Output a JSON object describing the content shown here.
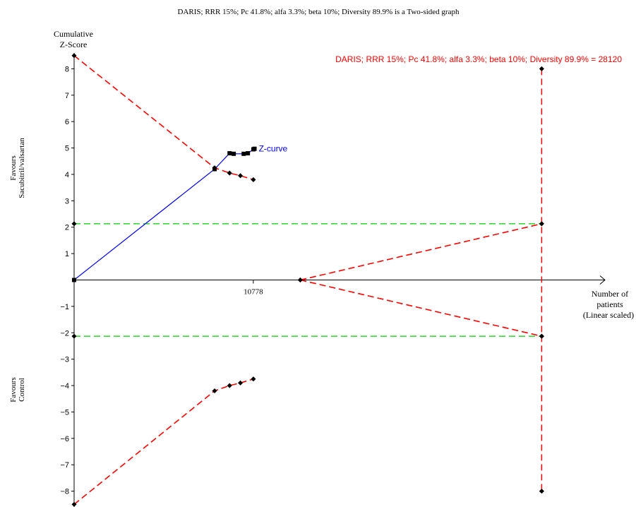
{
  "page_title": "DARIS; RRR 15%; Pc 41.8%; alfa 3.3%; beta 10%; Diversity 89.9% is a Two-sided graph",
  "chart_data": {
    "type": "line",
    "title": "DARIS; RRR 15%; Pc 41.8%; alfa 3.3%; beta 10%; Diversity 89.9% is a Two-sided graph",
    "ylabel_line1": "Cumulative",
    "ylabel_line2": "Z-Score",
    "xlabel_line1": "Number of",
    "xlabel_line2": "patients",
    "xlabel_line3": "(Linear scaled)",
    "favours_upper_line1": "Favours",
    "favours_upper_line2": "Sacubitril/valsartan",
    "favours_lower_line1": "Favours",
    "favours_lower_line2": "Control",
    "ris_label": "DARIS; RRR 15%; Pc 41.8%; alfa 3.3%; beta 10%; Diversity 89.9% = 28120",
    "ris_value": 28120,
    "xtick_label": "10778",
    "xtick_value": 10778,
    "ylim": [
      -8.6,
      8.6
    ],
    "xlim": [
      0,
      31500
    ],
    "yticks": [
      -8,
      -7,
      -6,
      -5,
      -4,
      -3,
      -2,
      -1,
      1,
      2,
      3,
      4,
      5,
      6,
      7,
      8
    ],
    "conventional_boundary": 2.13,
    "colors": {
      "zcurve": "#0000ff",
      "boundary": "#ff0000",
      "conventional": "#00cc00",
      "axis": "#000000",
      "ris_label": "#ff0000",
      "zcurve_label": "#0000ff"
    },
    "series": [
      {
        "name": "Z-curve",
        "points": [
          [
            0,
            0
          ],
          [
            8450,
            4.2
          ],
          [
            9350,
            4.8
          ],
          [
            9600,
            4.78
          ],
          [
            10200,
            4.78
          ],
          [
            10450,
            4.8
          ],
          [
            10780,
            4.95
          ],
          [
            10850,
            4.97
          ]
        ]
      },
      {
        "points": [
          [
            0,
            8.5
          ],
          [
            8450,
            4.25
          ],
          [
            9350,
            4.05
          ],
          [
            10000,
            3.95
          ],
          [
            10780,
            3.8
          ]
        ]
      },
      {
        "points": [
          [
            0,
            -8.5
          ],
          [
            8450,
            -4.2
          ],
          [
            9350,
            -4.0
          ],
          [
            10000,
            -3.9
          ],
          [
            10780,
            -3.75
          ]
        ]
      },
      {
        "points": [
          [
            13600,
            0
          ],
          [
            28120,
            2.13
          ]
        ]
      },
      {
        "points": [
          [
            13600,
            0
          ],
          [
            28120,
            -2.13
          ]
        ]
      }
    ]
  }
}
